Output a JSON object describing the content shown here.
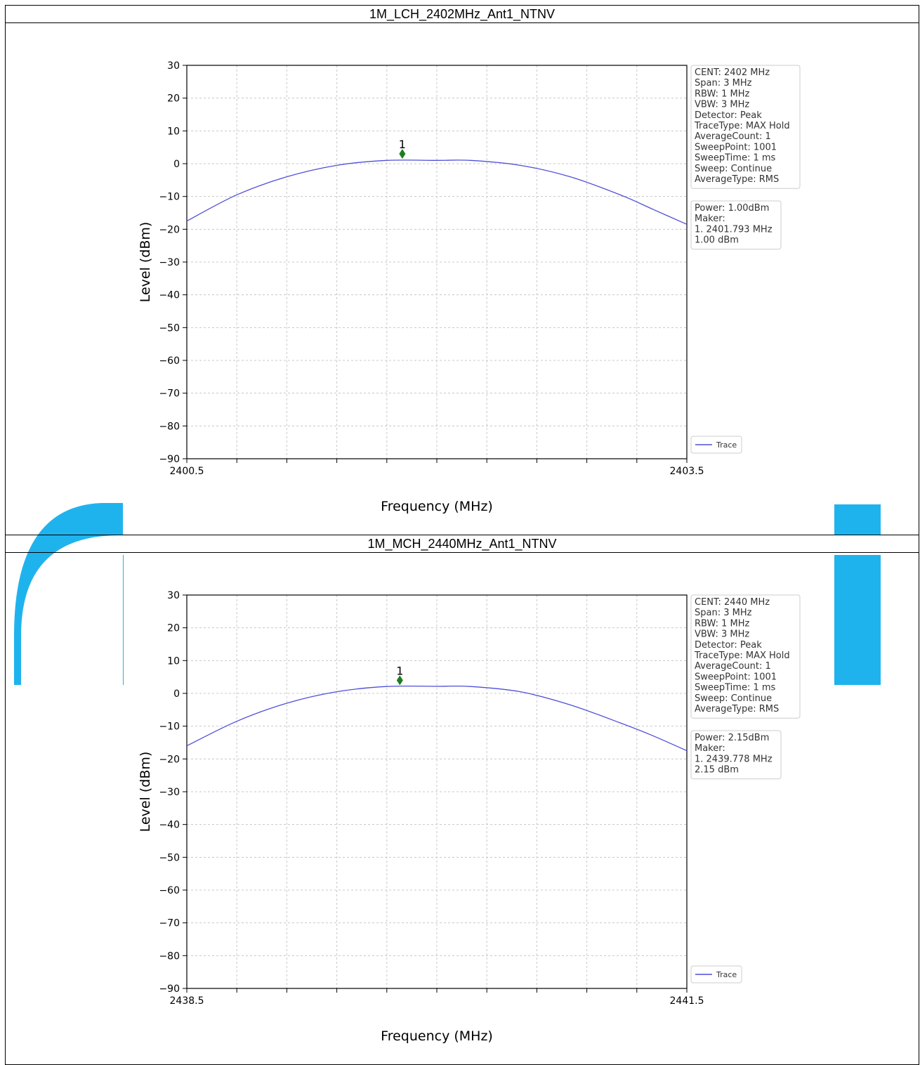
{
  "colors": {
    "watermark": "#1fb3ee",
    "trace": "#4f4fd9",
    "marker": "#1e7d1e"
  },
  "chart_data": [
    {
      "type": "line",
      "title": "1M_LCH_2402MHz_Ant1_NTNV",
      "xlabel": "Frequency (MHz)",
      "ylabel": "Level (dBm)",
      "xlim": [
        2400.5,
        2403.5
      ],
      "ylim": [
        -90,
        30
      ],
      "x_tick_labels": [
        "2400.5",
        "2403.5"
      ],
      "y_ticks": [
        30,
        20,
        10,
        0,
        -10,
        -20,
        -30,
        -40,
        -50,
        -60,
        -70,
        -80,
        -90
      ],
      "grid": true,
      "legend": {
        "position": "bottom-right",
        "entries": [
          "Trace"
        ]
      },
      "info_box": [
        "CENT: 2402 MHz",
        "Span: 3 MHz",
        "RBW: 1 MHz",
        "VBW: 3 MHz",
        "Detector: Peak",
        "TraceType: MAX Hold",
        "AverageCount: 1",
        "SweepPoint: 1001",
        "SweepTime: 1 ms",
        "Sweep: Continue",
        "AverageType: RMS"
      ],
      "power_box": [
        "Power: 1.00dBm",
        "Maker:",
        "1. 2401.793 MHz",
        "   1.00 dBm"
      ],
      "marker": {
        "label": "1",
        "x": 2401.793,
        "y": 3.0
      },
      "series": [
        {
          "name": "Trace",
          "x": [
            2400.5,
            2400.8,
            2401.1,
            2401.4,
            2401.7,
            2402.0,
            2402.2,
            2402.5,
            2402.8,
            2403.1,
            2403.3,
            2403.5
          ],
          "y": [
            -17.5,
            -9.5,
            -4.0,
            -0.5,
            1.0,
            1.0,
            1.0,
            -0.5,
            -4.0,
            -9.5,
            -14.0,
            -18.5
          ]
        }
      ]
    },
    {
      "type": "line",
      "title": "1M_MCH_2440MHz_Ant1_NTNV",
      "xlabel": "Frequency (MHz)",
      "ylabel": "Level (dBm)",
      "xlim": [
        2438.5,
        2441.5
      ],
      "ylim": [
        -90,
        30
      ],
      "x_tick_labels": [
        "2438.5",
        "2441.5"
      ],
      "y_ticks": [
        30,
        20,
        10,
        0,
        -10,
        -20,
        -30,
        -40,
        -50,
        -60,
        -70,
        -80,
        -90
      ],
      "grid": true,
      "legend": {
        "position": "bottom-right",
        "entries": [
          "Trace"
        ]
      },
      "info_box": [
        "CENT: 2440 MHz",
        "Span: 3 MHz",
        "RBW: 1 MHz",
        "VBW: 3 MHz",
        "Detector: Peak",
        "TraceType: MAX Hold",
        "AverageCount: 1",
        "SweepPoint: 1001",
        "SweepTime: 1 ms",
        "Sweep: Continue",
        "AverageType: RMS"
      ],
      "power_box": [
        "Power: 2.15dBm",
        "Maker:",
        "1. 2439.778 MHz",
        "   2.15 dBm"
      ],
      "marker": {
        "label": "1",
        "x": 2439.778,
        "y": 4.0
      },
      "series": [
        {
          "name": "Trace",
          "x": [
            2438.5,
            2438.8,
            2439.1,
            2439.4,
            2439.7,
            2440.0,
            2440.2,
            2440.5,
            2440.8,
            2441.1,
            2441.3,
            2441.5
          ],
          "y": [
            -16.0,
            -8.5,
            -3.0,
            0.5,
            2.1,
            2.15,
            2.1,
            0.5,
            -3.5,
            -9.0,
            -13.0,
            -17.5
          ]
        }
      ]
    }
  ]
}
